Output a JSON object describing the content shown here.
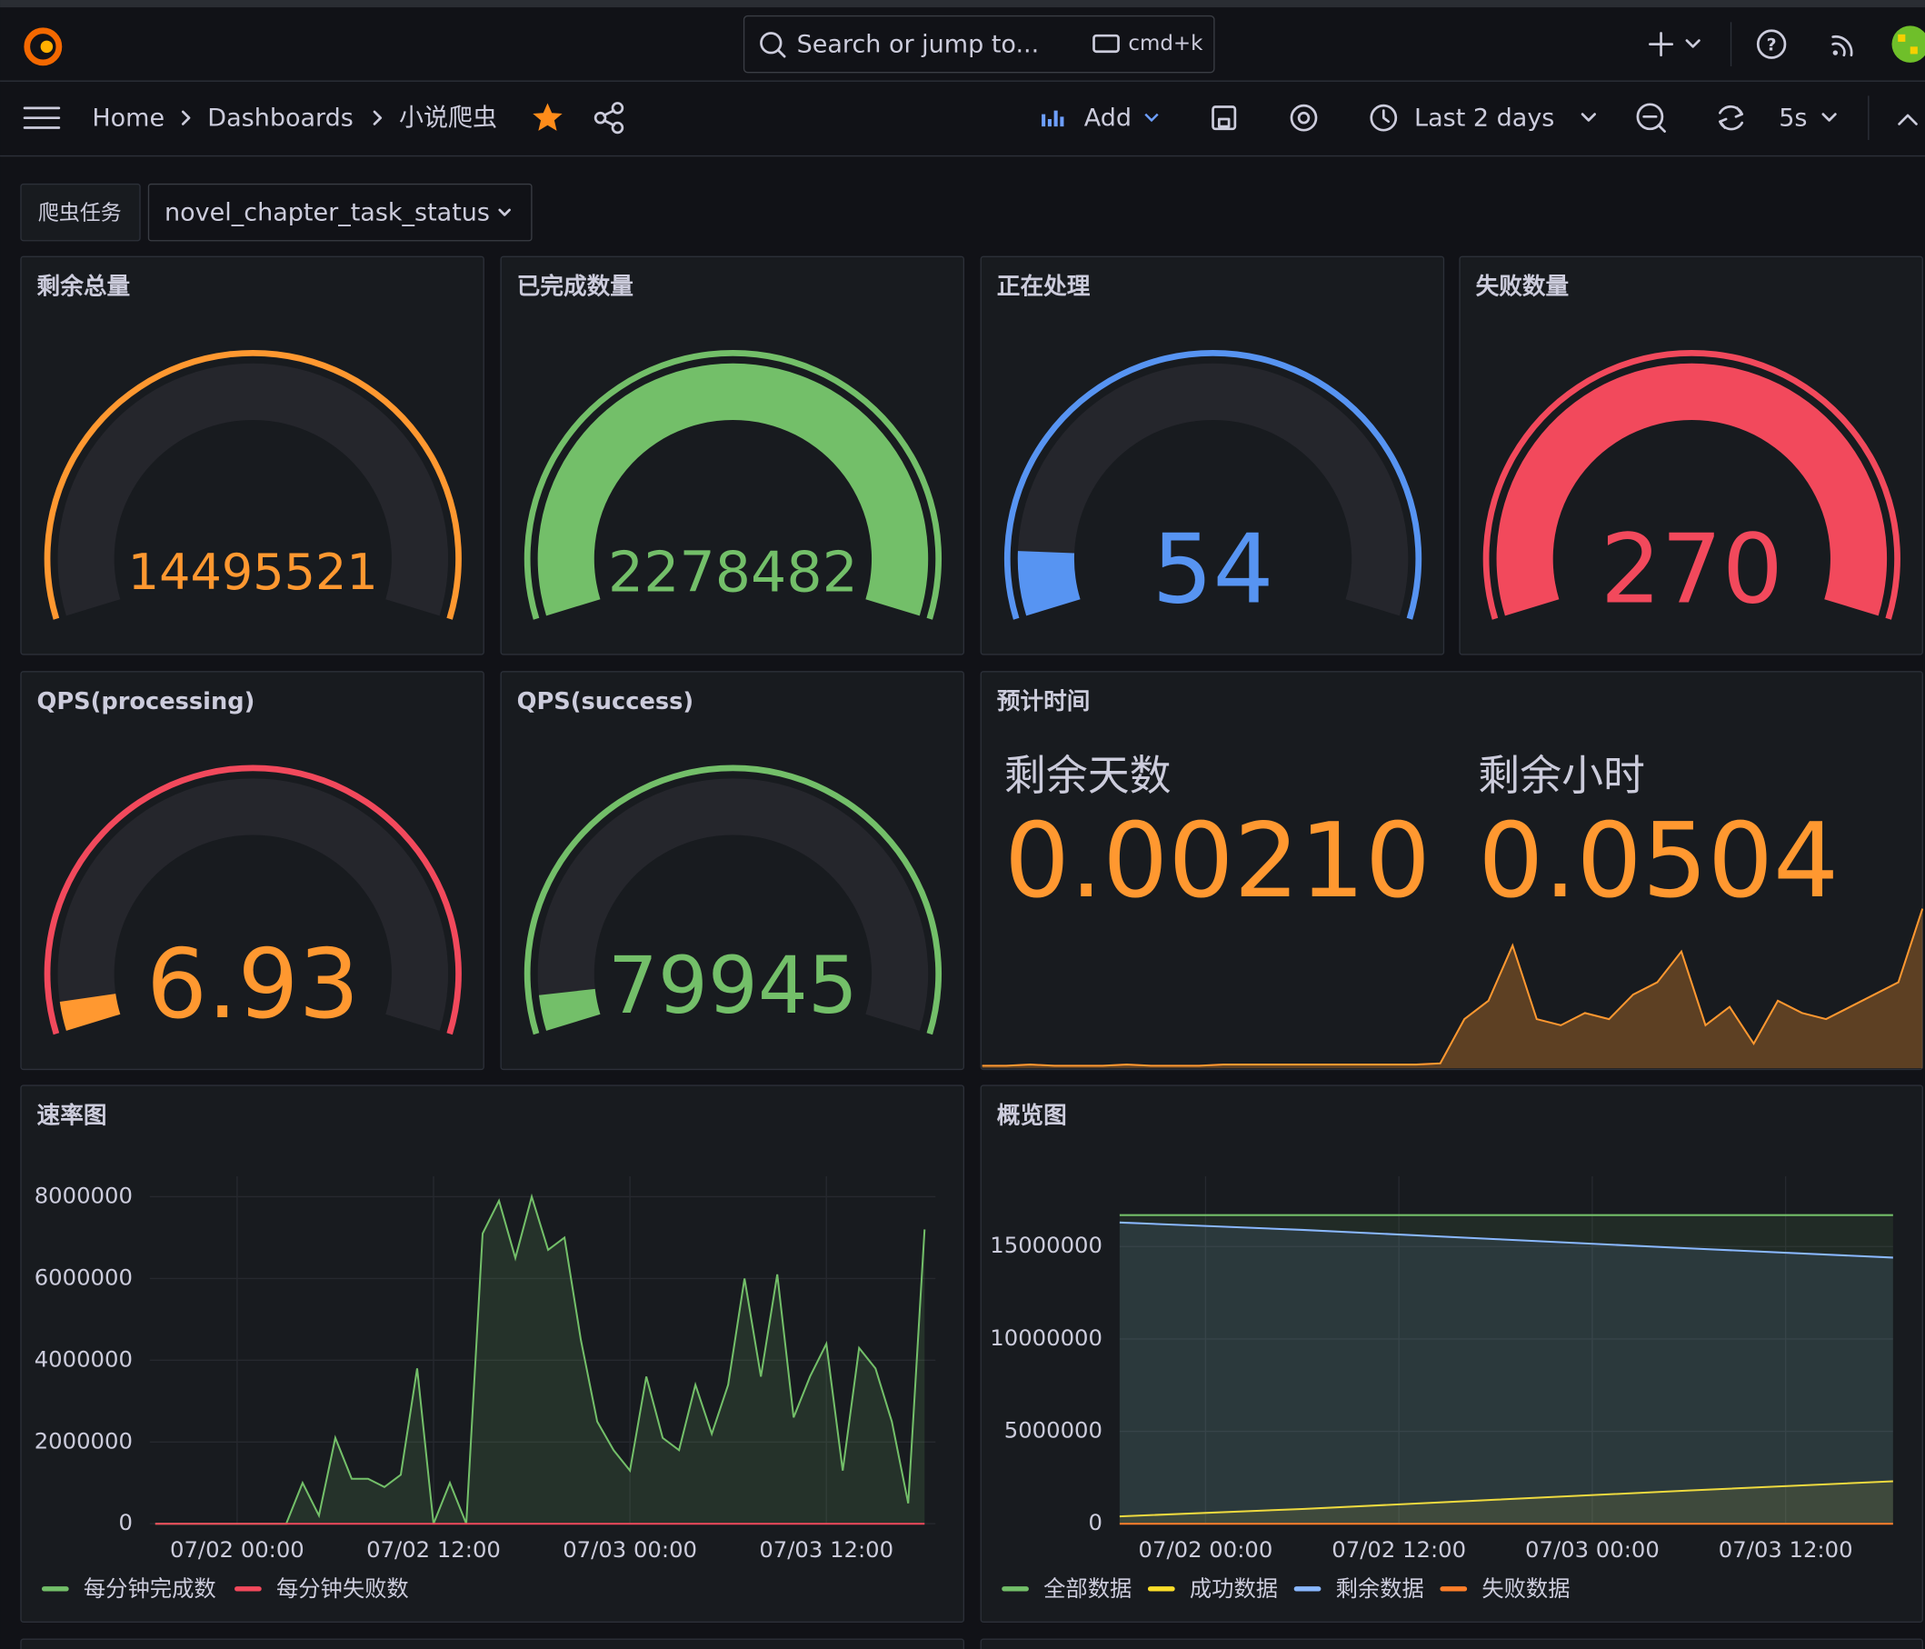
{
  "topbar": {
    "search": "Search or jump to...",
    "shortcut": "cmd+k"
  },
  "breadcrumb": {
    "items": [
      "Home",
      "Dashboards",
      "小说爬虫"
    ]
  },
  "toolbar": {
    "add": "Add",
    "time_range": "Last 2 days",
    "refresh_interval": "5s"
  },
  "variable": {
    "label": "爬虫任务",
    "value": "novel_chapter_task_status"
  },
  "gauges": [
    {
      "title": "剩余总量",
      "value": 14495521,
      "range": [
        14495521,
        17000000
      ],
      "color": "#ff9830",
      "threshold_color": "#ff9830"
    },
    {
      "title": "已完成数量",
      "value": 2278482,
      "range": [
        0,
        2278482
      ],
      "color": "#73bf69",
      "threshold_color": "#73bf69"
    },
    {
      "title": "正在处理",
      "value": 54,
      "range": [
        0,
        600
      ],
      "color": "#5794f2",
      "threshold_color": "#5794f2"
    },
    {
      "title": "失败数量",
      "value": 270,
      "range": [
        0,
        270
      ],
      "color": "#f2495c",
      "threshold_color": "#f2495c"
    },
    {
      "title": "QPS(processing)",
      "value": 6.93,
      "range": [
        0,
        170
      ],
      "color": "#ff9830",
      "threshold_color": "#f2495c"
    },
    {
      "title": "QPS(success)",
      "value": 79945,
      "range": [
        0,
        1600000
      ],
      "color": "#73bf69",
      "threshold_color": "#73bf69"
    }
  ],
  "estimate": {
    "title": "预计时间",
    "color": "#ff9830",
    "stats": [
      {
        "label": "剩余天数",
        "value": 0.0021,
        "value_label": "0.00210"
      },
      {
        "label": "剩余小时",
        "value": 0.0504
      }
    ],
    "sparkline": [
      2,
      2,
      3,
      2,
      2,
      2,
      3,
      2,
      2,
      2,
      3,
      3,
      3,
      3,
      3,
      3,
      3,
      3,
      3,
      4,
      40,
      55,
      100,
      40,
      35,
      45,
      40,
      60,
      70,
      95,
      35,
      50,
      20,
      55,
      45,
      40,
      50,
      60,
      70,
      130
    ]
  },
  "rate_chart": {
    "type": "line",
    "title": "速率图",
    "x": [
      "07/01 19:00",
      "07/01 20:00",
      "07/01 21:00",
      "07/01 22:00",
      "07/01 23:00",
      "07/02 00:00",
      "07/02 01:00",
      "07/02 02:00",
      "07/02 03:00",
      "07/02 04:00",
      "07/02 05:00",
      "07/02 06:00",
      "07/02 07:00",
      "07/02 08:00",
      "07/02 09:00",
      "07/02 10:00",
      "07/02 11:00",
      "07/02 12:00",
      "07/02 13:00",
      "07/02 14:00",
      "07/02 15:00",
      "07/02 16:00",
      "07/02 17:00",
      "07/02 18:00",
      "07/02 19:00",
      "07/02 20:00",
      "07/02 21:00",
      "07/02 22:00",
      "07/02 23:00",
      "07/03 00:00",
      "07/03 01:00",
      "07/03 02:00",
      "07/03 03:00",
      "07/03 04:00",
      "07/03 05:00",
      "07/03 06:00",
      "07/03 07:00",
      "07/03 08:00",
      "07/03 09:00",
      "07/03 10:00",
      "07/03 11:00",
      "07/03 12:00",
      "07/03 13:00",
      "07/03 14:00",
      "07/03 15:00",
      "07/03 16:00",
      "07/03 17:00",
      "07/03 18:00"
    ],
    "xlim": [
      "07/01 18:40",
      "07/03 18:40"
    ],
    "xticks": [
      "07/02 00:00",
      "07/02 12:00",
      "07/03 00:00",
      "07/03 12:00"
    ],
    "ylim": [
      0,
      8500000
    ],
    "yticks": [
      0,
      2000000,
      4000000,
      6000000,
      8000000
    ],
    "series": [
      {
        "name": "每分钟完成数",
        "color": "#73bf69",
        "values": [
          0,
          0,
          0,
          0,
          0,
          0,
          0,
          0,
          0,
          1000000,
          200000,
          2100000,
          1100000,
          1100000,
          900000,
          1200000,
          3800000,
          0,
          1000000,
          0,
          7100000,
          7900000,
          6500000,
          8000000,
          6700000,
          7000000,
          4500000,
          2500000,
          1800000,
          1300000,
          3600000,
          2100000,
          1800000,
          3400000,
          2200000,
          3400000,
          6000000,
          3600000,
          6100000,
          2600000,
          3600000,
          4400000,
          1300000,
          4300000,
          3800000,
          2500000,
          500000,
          7200000
        ]
      },
      {
        "name": "每分钟失败数",
        "color": "#f2495c",
        "values": [
          0,
          0,
          0,
          0,
          0,
          0,
          0,
          0,
          0,
          0,
          0,
          0,
          0,
          0,
          0,
          0,
          0,
          0,
          0,
          0,
          0,
          0,
          0,
          0,
          0,
          0,
          0,
          0,
          0,
          0,
          0,
          0,
          0,
          0,
          0,
          0,
          0,
          0,
          0,
          0,
          0,
          0,
          0,
          0,
          0,
          0,
          0,
          0
        ]
      }
    ]
  },
  "overview_chart": {
    "type": "area",
    "title": "概览图",
    "x": [
      "07/01 18:40",
      "07/02 06:00",
      "07/02 18:00",
      "07/03 06:00",
      "07/03 18:40"
    ],
    "xlim": [
      "07/01 18:40",
      "07/03 18:40"
    ],
    "xticks": [
      "07/02 00:00",
      "07/02 12:00",
      "07/03 00:00",
      "07/03 12:00"
    ],
    "ylim": [
      0,
      18800000
    ],
    "yticks": [
      0,
      5000000,
      10000000,
      15000000
    ],
    "series": [
      {
        "name": "全部数据",
        "color": "#73bf69",
        "values": [
          16700000,
          16700000,
          16700000,
          16700000,
          16700000
        ]
      },
      {
        "name": "成功数据",
        "color": "#fade2a",
        "values": [
          400000,
          800000,
          1300000,
          1800000,
          2300000
        ]
      },
      {
        "name": "剩余数据",
        "color": "#8ab8ff",
        "values": [
          16300000,
          15900000,
          15400000,
          14900000,
          14400000
        ]
      },
      {
        "name": "失败数据",
        "color": "#ff7f2a",
        "values": [
          0,
          100,
          150,
          200,
          270
        ]
      }
    ]
  }
}
